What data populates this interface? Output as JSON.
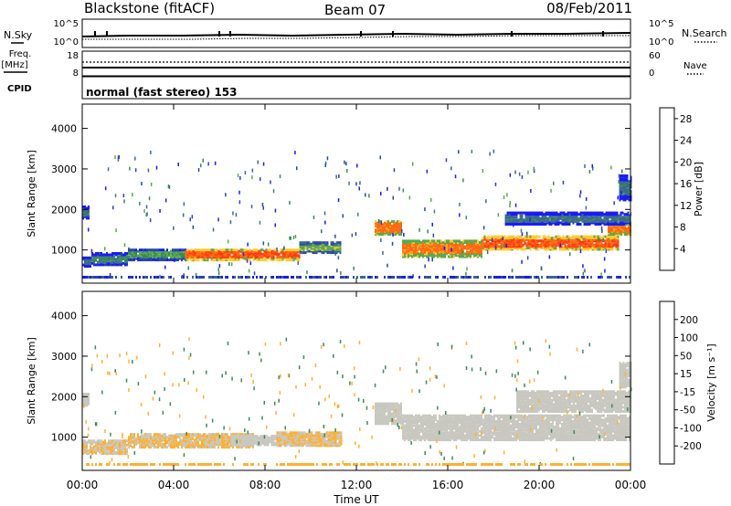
{
  "header": {
    "station": "Blackstone (fitACF)",
    "beam": "Beam 07",
    "date": "08/Feb/2011"
  },
  "noise_panel": {
    "left_label": "N.Sky",
    "left_ticks": [
      "10^5",
      "10^0"
    ],
    "right_label": "N.Search",
    "right_ticks": [
      "10^5",
      "10^0"
    ]
  },
  "freq_panel": {
    "left_label_line1": "Freq.",
    "left_label_line2": "[MHz]",
    "left_ticks": [
      "18",
      "8"
    ],
    "right_label": "Nave",
    "right_ticks": [
      "60",
      "0"
    ]
  },
  "cpid_panel": {
    "label": "CPID",
    "mode": "normal (fast stereo) 153"
  },
  "x_axis": {
    "label": "Time UT",
    "ticks": [
      "00:00",
      "04:00",
      "08:00",
      "12:00",
      "16:00",
      "20:00",
      "00:00"
    ]
  },
  "colors": {
    "power": [
      "#1a1aff",
      "#2a44b0",
      "#3a6a8a",
      "#3a8a5a",
      "#5aaa4a",
      "#ffcc33",
      "#ffa020",
      "#ff6a10",
      "#ff3a10",
      "#ee0000"
    ],
    "velocity": [
      "#ee0000",
      "#ff4a1a",
      "#ff8a1a",
      "#ffb030",
      "#c8c8c0",
      "#c8c8c0",
      "#7acc4a",
      "#3a8a5a",
      "#3a6a9a",
      "#1a1aaa"
    ]
  },
  "chart_data": [
    {
      "type": "heatmap",
      "name": "power",
      "ylabel": "Slant Range [km]",
      "yticks": [
        "1000",
        "2000",
        "3000",
        "4000"
      ],
      "ylim": [
        180,
        4600
      ],
      "xlim_hours": [
        0,
        24
      ],
      "colorbar": {
        "label": "Power [dB]",
        "ticks": [
          "4",
          "8",
          "12",
          "16",
          "20",
          "24",
          "28"
        ],
        "range": [
          0,
          30
        ]
      },
      "bands": [
        {
          "t": [
            0.0,
            0.4
          ],
          "range": [
            560,
            800
          ],
          "level": 8
        },
        {
          "t": [
            0.4,
            2.0
          ],
          "range": [
            600,
            900
          ],
          "level": 10
        },
        {
          "t": [
            2.0,
            4.5
          ],
          "range": [
            720,
            1000
          ],
          "level": 12
        },
        {
          "t": [
            4.5,
            9.5
          ],
          "range": [
            720,
            1000
          ],
          "level": 24
        },
        {
          "t": [
            9.5,
            11.3
          ],
          "range": [
            900,
            1150
          ],
          "level": 14
        },
        {
          "t": [
            12.8,
            14.0
          ],
          "range": [
            1350,
            1700
          ],
          "level": 22
        },
        {
          "t": [
            14.0,
            17.5
          ],
          "range": [
            800,
            1200
          ],
          "level": 22
        },
        {
          "t": [
            17.5,
            23.5
          ],
          "range": [
            980,
            1300
          ],
          "level": 24
        },
        {
          "t": [
            23.0,
            24.0
          ],
          "range": [
            1350,
            1650
          ],
          "level": 22
        },
        {
          "t": [
            0.0,
            0.3
          ],
          "range": [
            1750,
            2050
          ],
          "level": 8
        },
        {
          "t": [
            18.5,
            24.0
          ],
          "range": [
            1600,
            1900
          ],
          "level": 8
        },
        {
          "t": [
            23.5,
            24.0
          ],
          "range": [
            2200,
            2800
          ],
          "level": 8
        }
      ]
    },
    {
      "type": "heatmap",
      "name": "velocity",
      "ylabel": "Slant Range [km]",
      "yticks": [
        "1000",
        "2000",
        "3000",
        "4000"
      ],
      "ylim": [
        180,
        4600
      ],
      "xlim_hours": [
        0,
        24
      ],
      "colorbar": {
        "label": "Velocity [m s⁻¹]",
        "ticks": [
          "200",
          "100",
          "50",
          "15",
          "-15",
          "-50",
          "-100",
          "-200"
        ],
        "range": [
          -250,
          250
        ]
      },
      "bands": [
        {
          "t": [
            0.0,
            2.0
          ],
          "range": [
            560,
            900
          ],
          "level": -45
        },
        {
          "t": [
            2.0,
            7.5
          ],
          "range": [
            720,
            1050
          ],
          "level": -50
        },
        {
          "t": [
            6.5,
            8.5
          ],
          "range": [
            780,
            1000
          ],
          "level": 0
        },
        {
          "t": [
            8.5,
            11.3
          ],
          "range": [
            760,
            1100
          ],
          "level": -50
        },
        {
          "t": [
            12.8,
            14.0
          ],
          "range": [
            1300,
            1800
          ],
          "level": 20
        },
        {
          "t": [
            14.0,
            24.0
          ],
          "range": [
            900,
            1500
          ],
          "level": 0
        },
        {
          "t": [
            0.0,
            0.3
          ],
          "range": [
            1750,
            2050
          ],
          "level": 0
        },
        {
          "t": [
            19.0,
            24.0
          ],
          "range": [
            1600,
            2100
          ],
          "level": 0
        },
        {
          "t": [
            23.5,
            24.0
          ],
          "range": [
            2200,
            2800
          ],
          "level": 0
        }
      ]
    }
  ]
}
